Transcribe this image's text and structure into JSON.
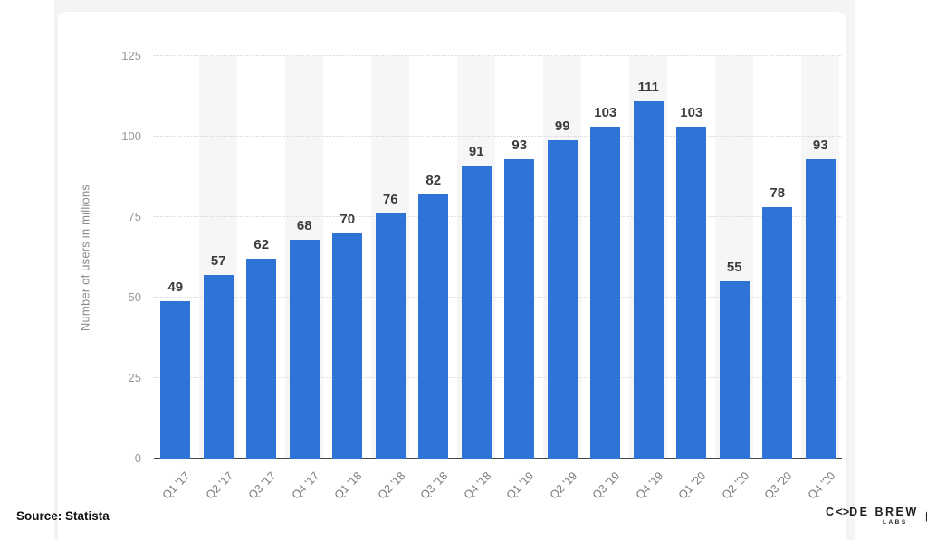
{
  "chart_data": {
    "type": "bar",
    "categories": [
      "Q1 '17",
      "Q2 '17",
      "Q3 '17",
      "Q4 '17",
      "Q1 '18",
      "Q2 '18",
      "Q3 '18",
      "Q4 '18",
      "Q1 '19",
      "Q2 '19",
      "Q3 '19",
      "Q4 '19",
      "Q1 '20",
      "Q2 '20",
      "Q3 '20",
      "Q4 '20"
    ],
    "values": [
      49,
      57,
      62,
      68,
      70,
      76,
      82,
      91,
      93,
      99,
      103,
      111,
      103,
      55,
      78,
      93
    ],
    "title": "",
    "xlabel": "",
    "ylabel": "Number of users in millions",
    "yticks": [
      0,
      25,
      50,
      75,
      100,
      125
    ],
    "ylim": [
      0,
      125
    ],
    "grid": "horizontal-dotted",
    "legend": "none",
    "band_pattern": "alternating light band behind every second column",
    "bar_color": "#2d74d6",
    "band_color": "#f6f6f8",
    "value_label_color": "#3c3c3c",
    "axis_text_color": "#8a8a8a"
  },
  "source": {
    "label": "Source: Statista"
  },
  "brand": {
    "part1": "C",
    "o_glyph": "<>",
    "part2": "DE BREW",
    "sub": "LABS",
    "arrow": ">"
  }
}
